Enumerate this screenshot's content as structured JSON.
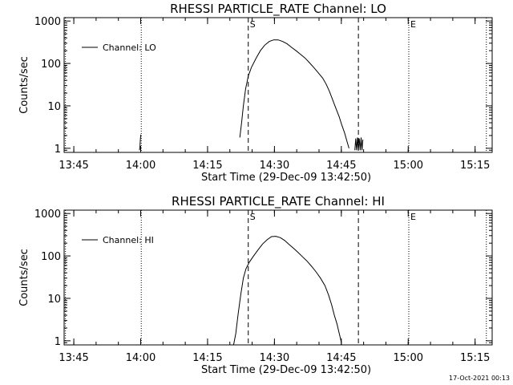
{
  "footer_date": "17-Oct-2021 00:13",
  "chart_data": [
    {
      "type": "line",
      "title": "RHESSI PARTICLE_RATE Channel: LO",
      "xlabel": "Start Time (29-Dec-09 13:42:50)",
      "ylabel": "Counts/sec",
      "x_unit": "minutes since 13:42:50",
      "xlim": [
        0,
        96
      ],
      "ylim": [
        0.8,
        1200
      ],
      "yscale": "log",
      "grid": false,
      "legend_placement": "top-left",
      "x_ticks": [
        {
          "pos": 2.17,
          "label": "13:45"
        },
        {
          "pos": 17.17,
          "label": "14:00"
        },
        {
          "pos": 32.17,
          "label": "14:15"
        },
        {
          "pos": 47.17,
          "label": "14:30"
        },
        {
          "pos": 62.17,
          "label": "14:45"
        },
        {
          "pos": 77.17,
          "label": "15:00"
        },
        {
          "pos": 92.17,
          "label": "15:15"
        }
      ],
      "y_ticks": [
        {
          "value": 1,
          "label": "1"
        },
        {
          "value": 10,
          "label": "10"
        },
        {
          "value": 100,
          "label": "100"
        },
        {
          "value": 1000,
          "label": "1000"
        }
      ],
      "markers": [
        {
          "x": 0.3,
          "style": "dotted",
          "label": ""
        },
        {
          "x": 17.3,
          "style": "dotted",
          "label": ""
        },
        {
          "x": 41.3,
          "style": "dashed",
          "label": "S"
        },
        {
          "x": 66.0,
          "style": "dashed",
          "label": ""
        },
        {
          "x": 77.3,
          "style": "dotted",
          "label": "E"
        },
        {
          "x": 94.7,
          "style": "dotted",
          "label": ""
        }
      ],
      "series": [
        {
          "name": "Channel: LO",
          "segments": [
            {
              "x": [
                16.9,
                17.0,
                17.1,
                17.2
              ],
              "y": [
                0.9,
                1.1,
                1.6,
                2.1
              ]
            },
            {
              "x": [
                39.4,
                39.8,
                40.2,
                40.7,
                41.3,
                42.0,
                43.0,
                44.0,
                45.0,
                46.0,
                47.0,
                48.0,
                49.0,
                50.0,
                51.0,
                52.0,
                53.0,
                54.0,
                55.0,
                56.0,
                57.0,
                58.0,
                58.8,
                59.5,
                60.2,
                61.0,
                61.7,
                62.3,
                62.9,
                63.4,
                63.9
              ],
              "y": [
                1.8,
                4,
                10,
                25,
                50,
                80,
                130,
                200,
                270,
                330,
                360,
                360,
                330,
                290,
                240,
                200,
                165,
                135,
                105,
                80,
                60,
                45,
                32,
                22,
                14,
                8.5,
                5.5,
                3.5,
                2.3,
                1.5,
                1
              ]
            },
            {
              "x": [
                65.2,
                65.4,
                65.6,
                65.8,
                66.0,
                66.2,
                66.4,
                66.6,
                66.8,
                67.0
              ],
              "y": [
                0.9,
                1.7,
                0.9,
                1.8,
                0.9,
                1.7,
                0.9,
                1.8,
                0.9,
                1.6
              ]
            }
          ]
        }
      ]
    },
    {
      "type": "line",
      "title": "RHESSI PARTICLE_RATE Channel: HI",
      "xlabel": "Start Time (29-Dec-09 13:42:50)",
      "ylabel": "Counts/sec",
      "x_unit": "minutes since 13:42:50",
      "xlim": [
        0,
        96
      ],
      "ylim": [
        0.8,
        1200
      ],
      "yscale": "log",
      "grid": false,
      "legend_placement": "top-left",
      "x_ticks": [
        {
          "pos": 2.17,
          "label": "13:45"
        },
        {
          "pos": 17.17,
          "label": "14:00"
        },
        {
          "pos": 32.17,
          "label": "14:15"
        },
        {
          "pos": 47.17,
          "label": "14:30"
        },
        {
          "pos": 62.17,
          "label": "14:45"
        },
        {
          "pos": 77.17,
          "label": "15:00"
        },
        {
          "pos": 92.17,
          "label": "15:15"
        }
      ],
      "y_ticks": [
        {
          "value": 1,
          "label": "1"
        },
        {
          "value": 10,
          "label": "10"
        },
        {
          "value": 100,
          "label": "100"
        },
        {
          "value": 1000,
          "label": "1000"
        }
      ],
      "markers": [
        {
          "x": 0.3,
          "style": "dotted",
          "label": ""
        },
        {
          "x": 17.3,
          "style": "dotted",
          "label": ""
        },
        {
          "x": 41.3,
          "style": "dashed",
          "label": "S"
        },
        {
          "x": 66.0,
          "style": "dashed",
          "label": ""
        },
        {
          "x": 77.3,
          "style": "dotted",
          "label": "E"
        },
        {
          "x": 94.7,
          "style": "dotted",
          "label": ""
        }
      ],
      "series": [
        {
          "name": "Channel: HI",
          "segments": [
            {
              "x": [
                38.0,
                38.5,
                39.0,
                39.6,
                40.2,
                40.8,
                41.5,
                42.5,
                43.5,
                44.5,
                45.5,
                46.5,
                47.5,
                48.5,
                49.5,
                50.5,
                51.5,
                52.5,
                53.5,
                54.5,
                55.5,
                56.5,
                57.5,
                58.5,
                59.3,
                60.0,
                60.6,
                61.2,
                61.7,
                62.2
              ],
              "y": [
                0.8,
                1.5,
                4,
                12,
                30,
                50,
                70,
                100,
                140,
                190,
                240,
                285,
                290,
                270,
                230,
                185,
                150,
                120,
                95,
                75,
                57,
                42,
                30,
                20,
                12,
                7,
                4,
                2.5,
                1.5,
                0.9
              ]
            }
          ]
        }
      ]
    }
  ]
}
